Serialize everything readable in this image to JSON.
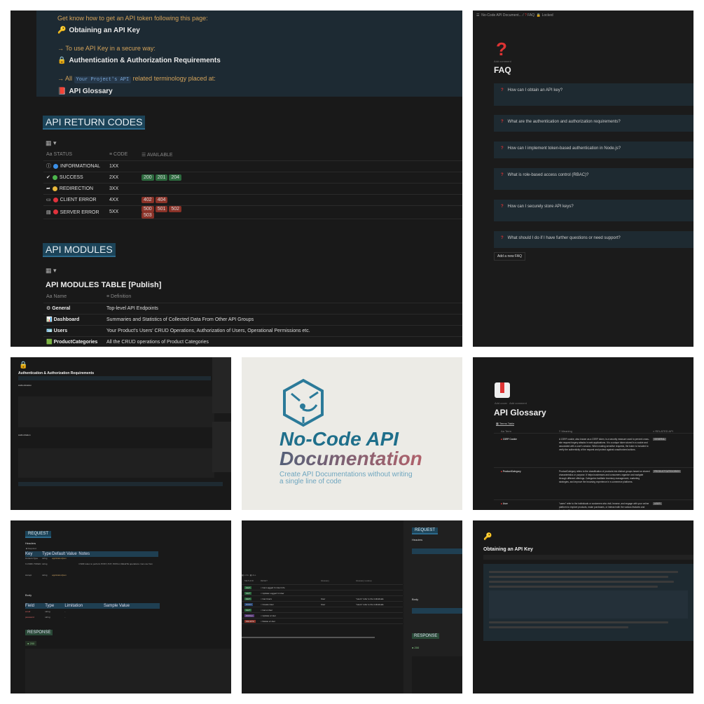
{
  "overview": {
    "token_intro": "Get know how to get an API token following this page:",
    "obtaining_link": "Obtaining an API Key",
    "secure_intro": "→ To use API Key in a secure way:",
    "auth_link": "Authentication & Authorization Requirements",
    "all_prefix": "→ All",
    "project_code": "Your Project's API",
    "all_suffix": "related terminology placed at:",
    "glossary_link": "API Glossary",
    "return_codes_title": "API RETURN CODES",
    "return_codes_columns": [
      "STATUS",
      "CODE",
      "AVAILABLE"
    ],
    "return_codes": [
      {
        "status": "INFORMATIONAL",
        "code": "1XX",
        "color": "#3b8fe6",
        "available": [],
        "tag": "g"
      },
      {
        "status": "SUCCESS",
        "code": "2XX",
        "color": "#4cb54c",
        "available": [
          "200",
          "201",
          "204"
        ],
        "tag": "g"
      },
      {
        "status": "REDIRECTION",
        "code": "3XX",
        "color": "#e8b73a",
        "available": [],
        "tag": "g"
      },
      {
        "status": "CLIENT ERROR",
        "code": "4XX",
        "color": "#e0323c",
        "available": [
          "402",
          "404"
        ],
        "tag": "r"
      },
      {
        "status": "SERVER ERROR",
        "code": "5XX",
        "color": "#e0323c",
        "available": [
          "500",
          "501",
          "502",
          "503"
        ],
        "tag": "r"
      }
    ],
    "modules_title": "API MODULES",
    "modules_table_title": "API MODULES TABLE [Publish]",
    "modules_columns": [
      "Name",
      "Definition"
    ],
    "modules": [
      {
        "name": "General",
        "definition": "Top-level API Endpoints"
      },
      {
        "name": "Dashboard",
        "definition": "Summaries and Statistics of Collected Data From Other API Groups"
      },
      {
        "name": "Users",
        "definition": "Your Product's Users' CRUD Operations, Authorization of Users, Operational Permissions etc."
      },
      {
        "name": "ProductCategories",
        "definition": "All the CRUD operations of Product Categories"
      }
    ]
  },
  "faq": {
    "breadcrumb": [
      "No-Code API Document...",
      "FAQ",
      "Locked"
    ],
    "add_comment": "Add comment",
    "title": "FAQ",
    "questions": [
      "How can I obtain an API key?",
      "What are the authentication and authorization requirements?",
      "How can I implement token-based authentication in Node.js?",
      "What is role-based access control (RBAC)?",
      "How can I securely store API keys?",
      "What should I do if I have further questions or need support?"
    ],
    "add_button": "Add a new FAQ"
  },
  "auth_page": {
    "title": "Authentication & Authorization Requirements",
    "authentication": "Authentication",
    "authorization": "Authorization"
  },
  "logo": {
    "line1": "No-Code API",
    "line2": "Documentation",
    "tagline1": "Create API Documentations without writing",
    "tagline2": "a single line of code",
    "color1": "#1f6f8b",
    "color2": "#b0616b"
  },
  "glossary": {
    "add_cover": "Add cover",
    "add_comment": "Add comment",
    "title": "API Glossary",
    "view": "Terms Table",
    "columns": [
      "Term",
      "Meaning",
      "RELATED API"
    ],
    "terms": [
      {
        "term": "CSRF Cookie",
        "meaning": "A CSRF cookie, also known as a CSRF token, is a security measure used to prevent cross-site request forgery attacks in web applications. It is a unique token stored in a cookie and associated with a user's session. When making sensitive requests, the token is included to verify the authenticity of the request and protect against unauthorized actions.",
        "related": "GENERAL"
      },
      {
        "term": "ProductCategory",
        "meaning": "ProductCategory refers to the classification of products into distinct groups based on shared characteristics or purpose. It helps businesses and consumers organize and navigate through different offerings. Categories facilitate inventory management, marketing strategies, and improve the browsing experience in e-commerce platforms.",
        "related": "PRODUCTCATEGORIES"
      },
      {
        "term": "User",
        "meaning": "\"users\" refer to the individuals or customers who visit, browse, and engage with your online platform to explore products, make purchases, or interact with the various features and functionalities",
        "related": "USER"
      }
    ]
  },
  "request": {
    "title": "REQUEST",
    "headers": "Headers",
    "required": "Required",
    "header_cols": [
      "Key",
      "Type",
      "Default Value",
      "Notes"
    ],
    "header_rows": [
      [
        "Content-Type",
        "string",
        "application/json",
        ""
      ],
      [
        "X-CSRF-TOKEN",
        "string",
        "",
        "CSRF token to perform POST, PUT, PATCH, DELETE operations. Get one from"
      ],
      [
        "Accept",
        "string",
        "application/json",
        ""
      ]
    ],
    "body": "Body",
    "body_cols": [
      "Field",
      "Type",
      "Limitation",
      "Sample Value"
    ],
    "body_rows": [
      [
        "email",
        "string",
        "-",
        ""
      ],
      [
        "password",
        "string",
        "-",
        ""
      ]
    ],
    "response": "RESPONSE",
    "status": "200"
  },
  "endpoints": {
    "views": [
      "LOG",
      "ALL"
    ],
    "columns": [
      "METHOD",
      "RESET",
      "Glossary",
      "Glossary Lookup"
    ],
    "rows": [
      {
        "method": "GET",
        "name": "Get Logged In User Info",
        "g": "",
        "l": ""
      },
      {
        "method": "GET",
        "name": "Update Logged In User",
        "g": "",
        "l": ""
      },
      {
        "method": "GET",
        "name": "Get Users",
        "g": "User",
        "l": "\"users\" refer to the individuals"
      },
      {
        "method": "POST",
        "name": "Create User",
        "g": "User",
        "l": "\"users\" refer to the individuals"
      },
      {
        "method": "GET",
        "name": "Get a User",
        "g": "",
        "l": ""
      },
      {
        "method": "PATCH",
        "name": "Update a User",
        "g": "",
        "l": ""
      },
      {
        "method": "DELETE",
        "name": "Delete a User",
        "g": "",
        "l": ""
      }
    ],
    "method_colors": {
      "GET": "#2c6a3e",
      "POST": "#2a4a7a",
      "PATCH": "#5a3a7a",
      "DELETE": "#8a3228"
    }
  },
  "obtaining": {
    "title": "Obtaining an API Key"
  }
}
